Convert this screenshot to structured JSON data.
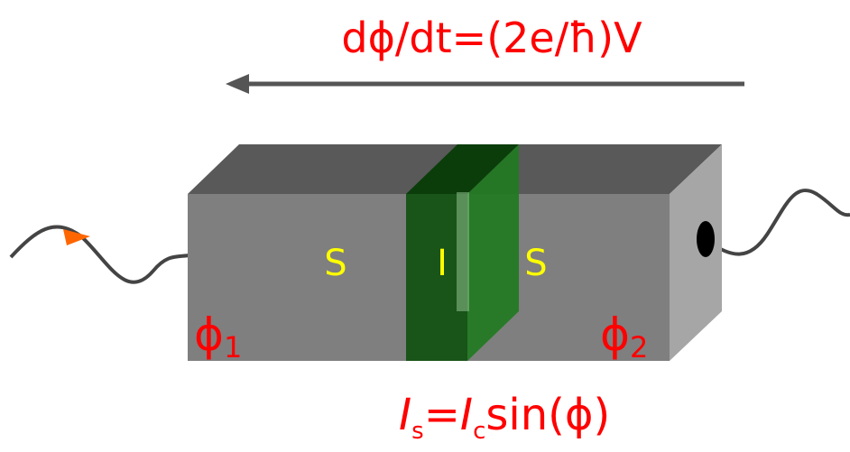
{
  "top_equation": "dϕ/dt=(2e/ħ)V",
  "junction": {
    "left": "S",
    "middle": "I",
    "right": "S"
  },
  "phases": [
    {
      "symbol": "ϕ",
      "subscript": "1"
    },
    {
      "symbol": "ϕ",
      "subscript": "2"
    }
  ],
  "bottom_equation": {
    "parts": [
      "I",
      "s",
      "=",
      "I",
      "c",
      "sin(ϕ)"
    ]
  }
}
